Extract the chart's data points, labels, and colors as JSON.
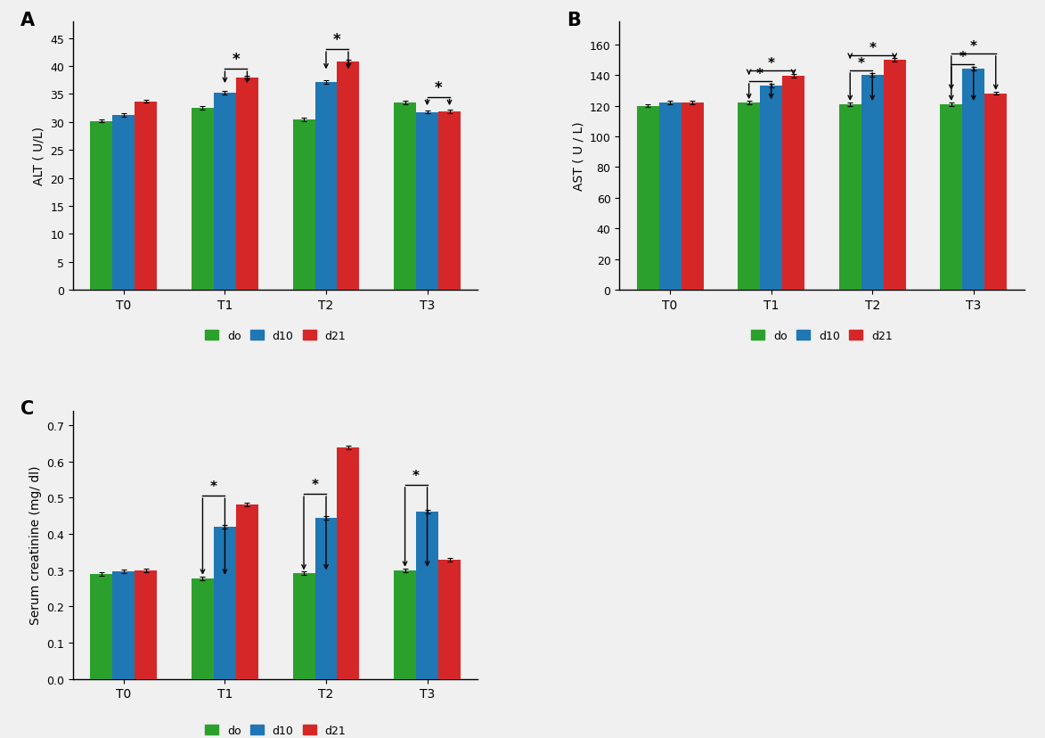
{
  "alt": {
    "categories": [
      "T0",
      "T1",
      "T2",
      "T3"
    ],
    "do": [
      30.2,
      32.5,
      30.5,
      33.5
    ],
    "d10": [
      31.2,
      35.2,
      37.2,
      31.8
    ],
    "d21": [
      33.7,
      37.9,
      40.8,
      31.9
    ],
    "do_err": [
      0.3,
      0.3,
      0.3,
      0.3
    ],
    "d10_err": [
      0.3,
      0.3,
      0.3,
      0.3
    ],
    "d21_err": [
      0.3,
      0.3,
      0.3,
      0.3
    ],
    "ylabel": "ALT ( U/L)",
    "ylim": [
      0,
      48
    ],
    "yticks": [
      0,
      5,
      10,
      15,
      20,
      25,
      30,
      35,
      40,
      45
    ],
    "label": "A"
  },
  "ast": {
    "categories": [
      "T0",
      "T1",
      "T2",
      "T3"
    ],
    "do": [
      120.0,
      122.0,
      121.0,
      121.0
    ],
    "d10": [
      122.0,
      133.0,
      140.0,
      144.0
    ],
    "d21": [
      122.0,
      139.5,
      150.0,
      128.0
    ],
    "do_err": [
      1.0,
      1.0,
      1.2,
      1.0
    ],
    "d10_err": [
      1.0,
      1.0,
      1.0,
      1.0
    ],
    "d21_err": [
      1.0,
      1.0,
      1.0,
      1.0
    ],
    "ylabel": "AST ( U / L)",
    "ylim": [
      0,
      175
    ],
    "yticks": [
      0,
      20,
      40,
      60,
      80,
      100,
      120,
      140,
      160
    ],
    "label": "B"
  },
  "creatinine": {
    "categories": [
      "T0",
      "T1",
      "T2",
      "T3"
    ],
    "do": [
      0.289,
      0.278,
      0.292,
      0.3
    ],
    "d10": [
      0.297,
      0.42,
      0.443,
      0.462
    ],
    "d21": [
      0.3,
      0.48,
      0.638,
      0.328
    ],
    "do_err": [
      0.005,
      0.005,
      0.005,
      0.005
    ],
    "d10_err": [
      0.005,
      0.005,
      0.005,
      0.005
    ],
    "d21_err": [
      0.005,
      0.005,
      0.005,
      0.005
    ],
    "ylabel": "Serum creatinine (mg/ dl)",
    "ylim": [
      0,
      0.74
    ],
    "yticks": [
      0.0,
      0.1,
      0.2,
      0.3,
      0.4,
      0.5,
      0.6,
      0.7
    ],
    "label": "C"
  },
  "colors": {
    "do": "#2ca02c",
    "d10": "#1f77b4",
    "d21": "#d62728"
  },
  "bar_width": 0.22,
  "legend_labels": [
    "do",
    "d10",
    "d21"
  ],
  "bg_color": "#f0f0f0"
}
